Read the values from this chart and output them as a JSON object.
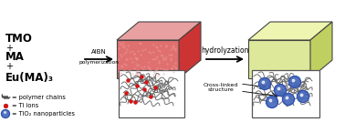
{
  "bg_color": "#ffffff",
  "reagents_text": [
    "TMO",
    "+",
    "MA",
    "+",
    "Eu(MA)₃"
  ],
  "arrow1_label_top": "AIBN",
  "arrow1_label_bot": "polymerization",
  "arrow2_label": "hydrolyzation",
  "box1_front": "#e07070",
  "box1_top": "#e8a0a0",
  "box1_side": "#cc3333",
  "box2_front": "#dde89a",
  "box2_top": "#eef5b0",
  "box2_side": "#c0d060",
  "crosslink_label": "Cross-linked\nstructure",
  "polymer_chain_color": "#666666",
  "ti_ion_color": "#dd1111",
  "nanoparticle_color": "#4466bb",
  "nanoparticle_edge": "#2244aa",
  "legend_chain_label": "= polymer chains",
  "legend_ti_label": "= Ti ions",
  "legend_np_label": "= TiO₂ nanoparticles"
}
